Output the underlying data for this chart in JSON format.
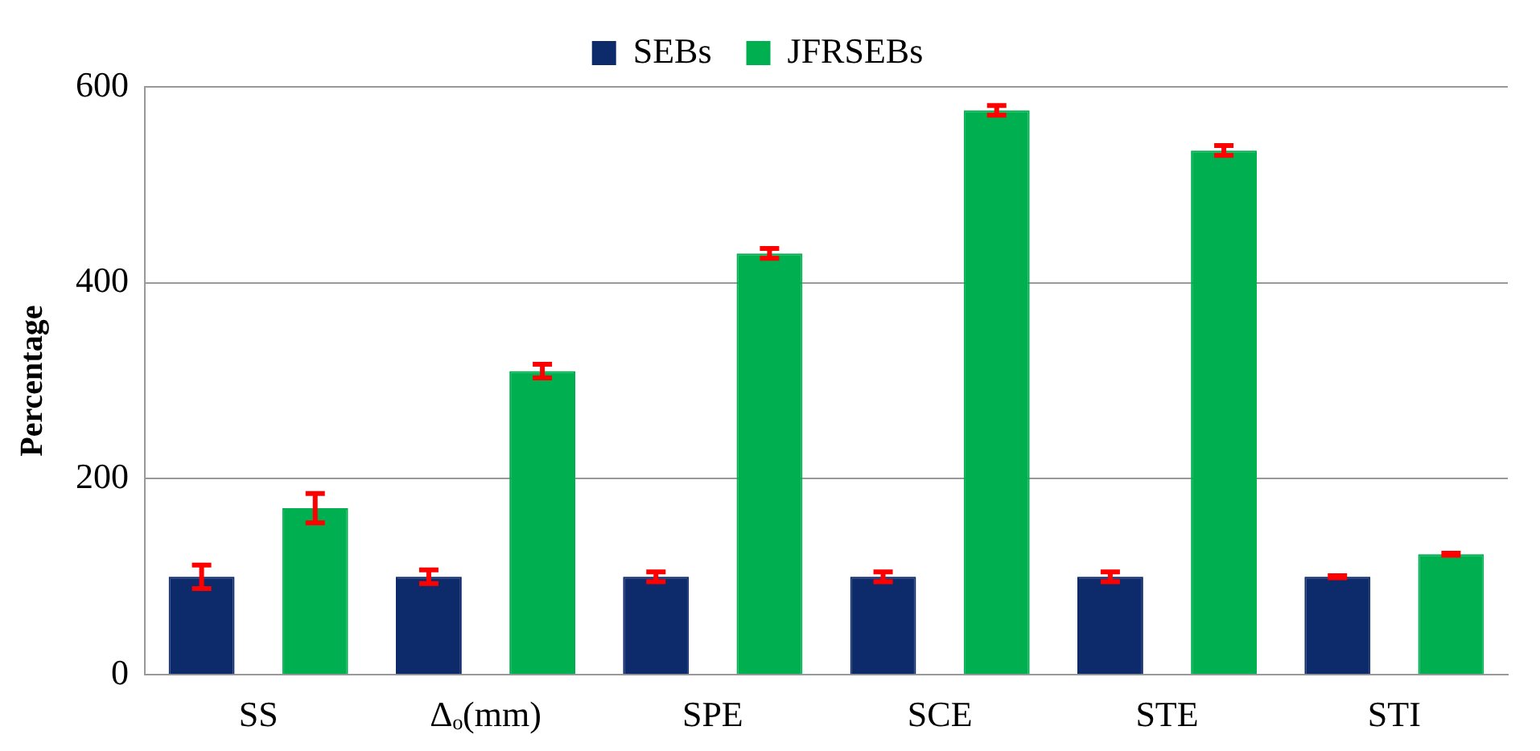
{
  "chart_data": {
    "type": "bar",
    "ylabel": "Percentage",
    "categories": [
      "SS",
      "Δₒ(mm)",
      "SPE",
      "SCE",
      "STE",
      "STI"
    ],
    "series": [
      {
        "name": "SEBs",
        "color": "#0d2a6b",
        "values": [
          100,
          100,
          100,
          100,
          100,
          100
        ],
        "errors": [
          12,
          7,
          5,
          5,
          5,
          1
        ]
      },
      {
        "name": "JFRSEBs",
        "color": "#00b050",
        "values": [
          170,
          310,
          430,
          576,
          535,
          123
        ],
        "errors": [
          15,
          7,
          5,
          5,
          5,
          1
        ]
      }
    ],
    "ylim": [
      0,
      600
    ],
    "yticks": [
      0,
      200,
      400,
      600
    ],
    "grid": "y",
    "legend": "top"
  }
}
